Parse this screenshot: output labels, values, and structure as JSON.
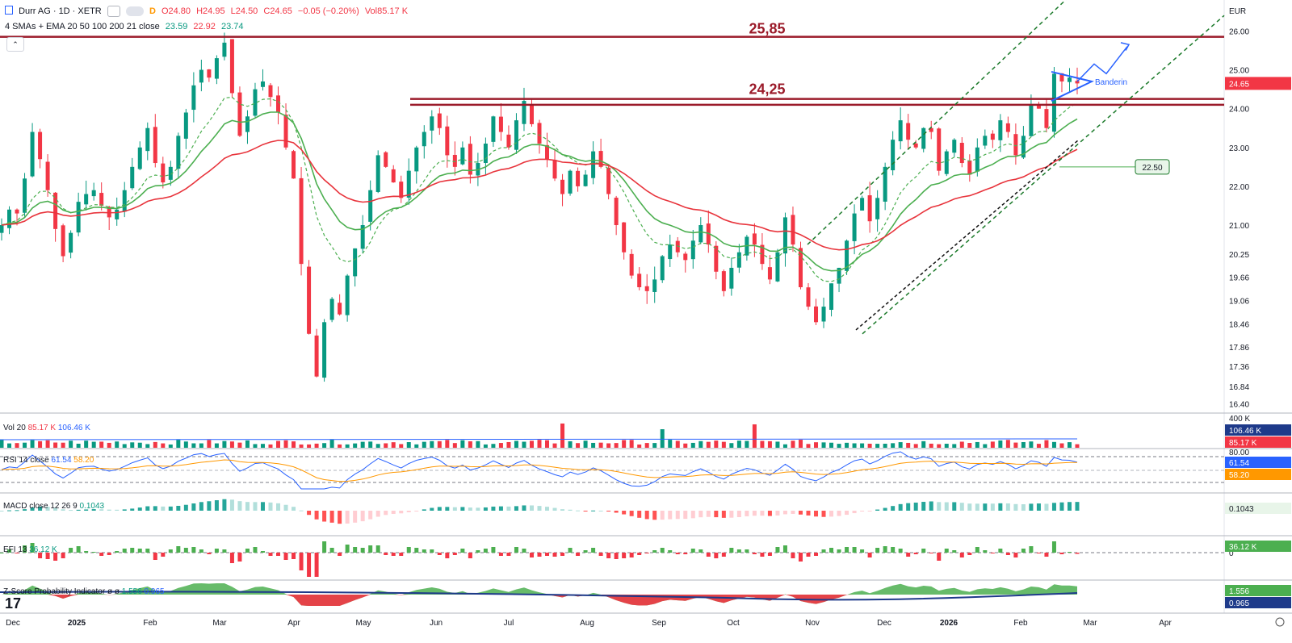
{
  "header": {
    "symbol": "Durr AG · 1D · XETR",
    "ohlc_open": "O24.80",
    "ohlc_high": "H24.95",
    "ohlc_low": "L24.50",
    "ohlc_close": "C24.65",
    "change": "−0.05 (−0.20%)",
    "volume": "Vol85.17 K",
    "ma_label": "4 SMAs + EMA 20 50 100 200 21 close",
    "ma_v1": "23.59",
    "ma_v2": "22.92",
    "ma_v3": "23.74",
    "currency": "EUR",
    "d_badge": "D"
  },
  "colors": {
    "up": "#089981",
    "down": "#f23645",
    "resistance": "#9b1b2a",
    "ema_green": "#4caf50",
    "ema_red": "#e8343c",
    "channel": "#1b7a2a",
    "pennant": "#2962ff"
  },
  "chart_data": [
    {
      "type": "candlestick",
      "title": "Durr AG · 1D · XETR",
      "ylim": [
        16.2,
        26.3
      ],
      "y_ticks": [
        "26.00",
        "25.00",
        "24.00",
        "23.00",
        "22.00",
        "21.00",
        "20.25",
        "19.66",
        "19.06",
        "18.46",
        "17.86",
        "17.36",
        "16.84",
        "16.40"
      ],
      "x_ticks": [
        "Dec",
        "2025",
        "Feb",
        "Mar",
        "Apr",
        "May",
        "Jun",
        "Jul",
        "Aug",
        "Sep",
        "Oct",
        "Nov",
        "Dec",
        "2026",
        "Feb",
        "Mar",
        "Apr"
      ],
      "last_price": "24.65",
      "annotations": {
        "res_high_label": "25,85",
        "res_high": 25.85,
        "res_mid_label": "24,25",
        "res_mid_upper": 24.25,
        "res_mid_lower": 24.1,
        "support_label": "22.50",
        "pennant_label": "Banderin"
      },
      "close_path": [
        21.0,
        21.4,
        21.3,
        22.2,
        23.4,
        22.7,
        21.9,
        20.9,
        20.2,
        20.8,
        21.6,
        21.8,
        21.9,
        21.5,
        21.2,
        21.4,
        21.9,
        22.5,
        23.0,
        23.5,
        22.6,
        22.1,
        22.5,
        23.3,
        23.9,
        24.6,
        25.0,
        24.8,
        25.3,
        25.7,
        24.4,
        23.3,
        23.8,
        24.5,
        24.7,
        24.3,
        23.9,
        23.0,
        22.2,
        20.0,
        18.2,
        17.1,
        18.5,
        19.1,
        18.7,
        19.7,
        20.4,
        21.0,
        21.9,
        22.8,
        22.5,
        22.1,
        21.7,
        22.4,
        23.0,
        23.4,
        23.8,
        23.5,
        22.8,
        22.5,
        23.0,
        22.3,
        22.6,
        23.1,
        23.8,
        23.4,
        23.0,
        23.7,
        24.2,
        23.6,
        23.1,
        22.7,
        22.2,
        21.8,
        22.4,
        22.0,
        22.3,
        22.9,
        22.5,
        21.8,
        21.0,
        20.3,
        19.7,
        19.4,
        19.3,
        19.6,
        20.2,
        20.5,
        20.3,
        20.1,
        20.6,
        21.0,
        20.5,
        19.8,
        19.3,
        19.9,
        20.3,
        20.7,
        20.5,
        20.0,
        19.6,
        20.3,
        21.2,
        20.5,
        19.4,
        18.9,
        18.5,
        18.9,
        19.5,
        19.9,
        20.6,
        21.3,
        21.7,
        21.1,
        21.7,
        22.5,
        23.2,
        23.7,
        23.2,
        23.0,
        23.5,
        23.4,
        22.4,
        22.9,
        23.2,
        22.6,
        22.3,
        23.0,
        23.3,
        23.2,
        23.7,
        23.4,
        22.8,
        23.3,
        24.1,
        24.0,
        23.5,
        24.9,
        24.7,
        24.8,
        24.65
      ]
    },
    {
      "type": "bar",
      "title": "Vol 20",
      "values_label": [
        "85.17 K",
        "106.46 K"
      ],
      "y_ticks": [
        "400 K"
      ],
      "last_values": [
        "106.46 K",
        "85.17 K"
      ]
    },
    {
      "type": "line",
      "title": "RSI 14 close",
      "values_label": [
        "61.54",
        "58.20"
      ],
      "y_ticks": [
        "80.00"
      ],
      "last_values": [
        "61.54",
        "58.20"
      ]
    },
    {
      "type": "bar",
      "title": "MACD close 12 26 9",
      "values_label": [
        "0.1043"
      ],
      "last_values": [
        "0.1043"
      ]
    },
    {
      "type": "bar",
      "title": "EFI 13",
      "values_label": [
        "36.12 K"
      ],
      "y_ticks": [
        "0"
      ],
      "last_values": [
        "36.12 K"
      ]
    },
    {
      "type": "area",
      "title": "Z-Score Probability Indicator",
      "values_label": [
        "ø",
        "ø",
        "1.556",
        "0.965"
      ],
      "last_values": [
        "1.556",
        "0.965"
      ]
    }
  ]
}
